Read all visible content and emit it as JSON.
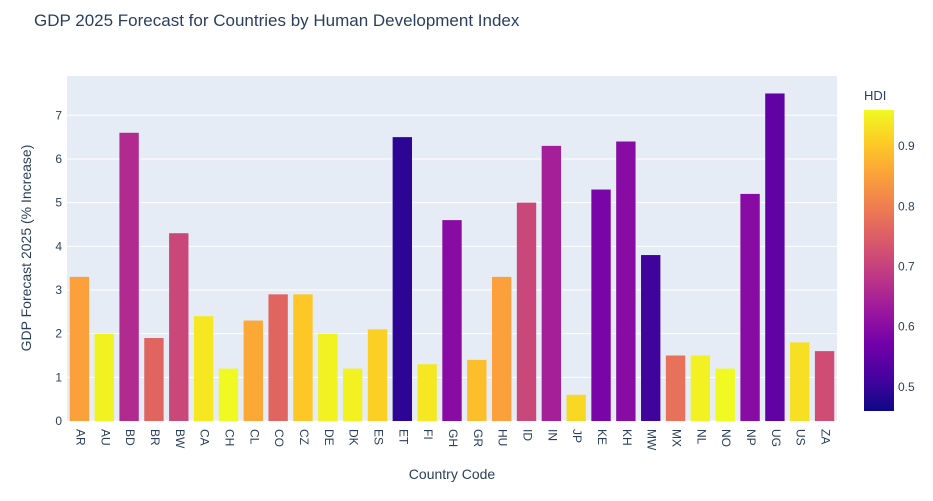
{
  "chart_data": {
    "type": "bar",
    "title": "GDP 2025 Forecast for Countries by Human Development Index",
    "xlabel": "Country Code",
    "ylabel": "GDP Forecast 2025 (% Increase)",
    "ylim": [
      0,
      7.9
    ],
    "yticks": [
      "0",
      "1",
      "2",
      "3",
      "4",
      "5",
      "6",
      "7"
    ],
    "grid": true,
    "categories": [
      "AR",
      "AU",
      "BD",
      "BR",
      "BW",
      "CA",
      "CH",
      "CL",
      "CO",
      "CZ",
      "DE",
      "DK",
      "ES",
      "ET",
      "FI",
      "GH",
      "GR",
      "HU",
      "ID",
      "IN",
      "JP",
      "KE",
      "KH",
      "MW",
      "MX",
      "NL",
      "NO",
      "NP",
      "UG",
      "US",
      "ZA"
    ],
    "values": [
      3.3,
      2.0,
      6.6,
      1.9,
      4.3,
      2.4,
      1.2,
      2.3,
      2.9,
      2.9,
      2.0,
      1.2,
      2.1,
      6.5,
      1.3,
      4.6,
      1.4,
      3.3,
      5.0,
      6.3,
      0.6,
      5.3,
      6.4,
      3.8,
      1.5,
      1.5,
      1.2,
      5.2,
      7.5,
      1.8,
      1.6
    ],
    "color_values": [
      0.85,
      0.95,
      0.66,
      0.76,
      0.71,
      0.94,
      0.96,
      0.86,
      0.76,
      0.9,
      0.95,
      0.95,
      0.91,
      0.49,
      0.94,
      0.6,
      0.89,
      0.85,
      0.71,
      0.64,
      0.92,
      0.58,
      0.6,
      0.51,
      0.78,
      0.95,
      0.96,
      0.6,
      0.55,
      0.93,
      0.72
    ],
    "colorbar": {
      "title": "HDI",
      "range": [
        0.46,
        0.96
      ],
      "ticks": [
        0.5,
        0.6,
        0.7,
        0.8,
        0.9
      ],
      "tick_labels": [
        "0.5",
        "0.6",
        "0.7",
        "0.8",
        "0.9"
      ],
      "colorscale": [
        "#0d0887",
        "#46039f",
        "#7201a8",
        "#9c179e",
        "#bd3786",
        "#d8576b",
        "#ed7953",
        "#fb9f3a",
        "#fdca26",
        "#f0f921"
      ]
    },
    "plot_bg": "#e5ecf6"
  }
}
